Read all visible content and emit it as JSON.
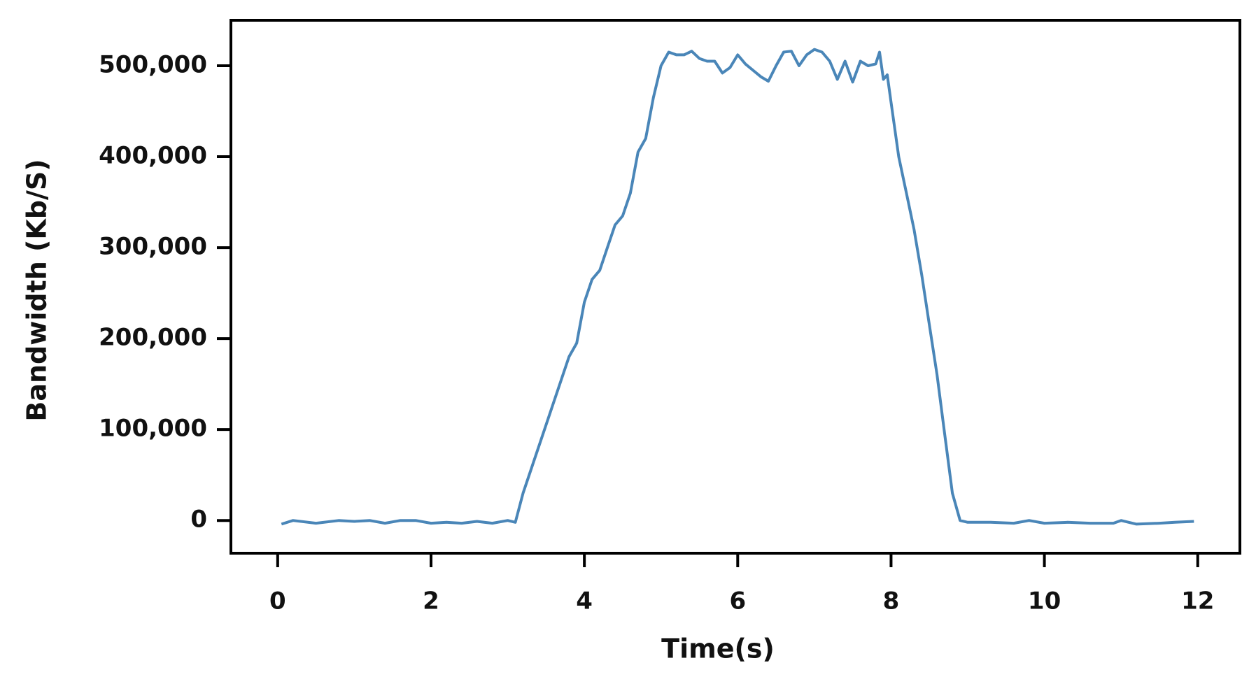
{
  "chart_data": {
    "type": "line",
    "x_label": "Time(s)",
    "y_label": "Bandwidth (Kb/S)",
    "color": "#4a86b8",
    "x": [
      0.05,
      0.2,
      0.5,
      0.8,
      1.0,
      1.2,
      1.4,
      1.6,
      1.8,
      2.0,
      2.2,
      2.4,
      2.6,
      2.8,
      3.0,
      3.1,
      3.2,
      3.4,
      3.6,
      3.8,
      3.9,
      4.0,
      4.1,
      4.2,
      4.3,
      4.4,
      4.5,
      4.6,
      4.7,
      4.8,
      4.9,
      5.0,
      5.1,
      5.2,
      5.3,
      5.4,
      5.5,
      5.6,
      5.7,
      5.8,
      5.9,
      6.0,
      6.1,
      6.2,
      6.3,
      6.4,
      6.5,
      6.6,
      6.7,
      6.8,
      6.9,
      7.0,
      7.1,
      7.2,
      7.3,
      7.4,
      7.5,
      7.6,
      7.7,
      7.8,
      7.85,
      7.9,
      7.95,
      8.0,
      8.1,
      8.2,
      8.3,
      8.4,
      8.5,
      8.6,
      8.7,
      8.8,
      8.9,
      9.0,
      9.3,
      9.6,
      9.8,
      10.0,
      10.3,
      10.6,
      10.9,
      11.0,
      11.2,
      11.5,
      11.7,
      11.95
    ],
    "values": [
      -4000,
      0,
      -3000,
      0,
      -1000,
      0,
      -3000,
      0,
      0,
      -3000,
      -2000,
      -3000,
      -1000,
      -3000,
      0,
      -2000,
      30000,
      80000,
      130000,
      180000,
      195000,
      240000,
      265000,
      275000,
      300000,
      325000,
      335000,
      360000,
      405000,
      420000,
      465000,
      500000,
      515000,
      512000,
      512000,
      516000,
      508000,
      505000,
      505000,
      492000,
      498000,
      512000,
      502000,
      495000,
      488000,
      483000,
      500000,
      515000,
      516000,
      500000,
      512000,
      518000,
      515000,
      505000,
      485000,
      505000,
      482000,
      505000,
      500000,
      502000,
      515000,
      485000,
      490000,
      460000,
      400000,
      360000,
      320000,
      270000,
      215000,
      160000,
      95000,
      30000,
      0,
      -2000,
      -2000,
      -3000,
      0,
      -3000,
      -2000,
      -3000,
      -3000,
      0,
      -4000,
      -3000,
      -2000,
      -1000
    ],
    "xlim": [
      -0.61,
      12.55
    ],
    "ylim": [
      -36000,
      550000
    ],
    "xticks": [
      0,
      2,
      4,
      6,
      8,
      10,
      12
    ],
    "yticks": [
      0,
      {
        "value": 100000,
        "label": "100,000"
      },
      {
        "value": 200000,
        "label": "200,000"
      },
      {
        "value": 300000,
        "label": "300,000"
      },
      {
        "value": 400000,
        "label": "400,000"
      },
      {
        "value": 500000,
        "label": "500,000"
      }
    ]
  }
}
